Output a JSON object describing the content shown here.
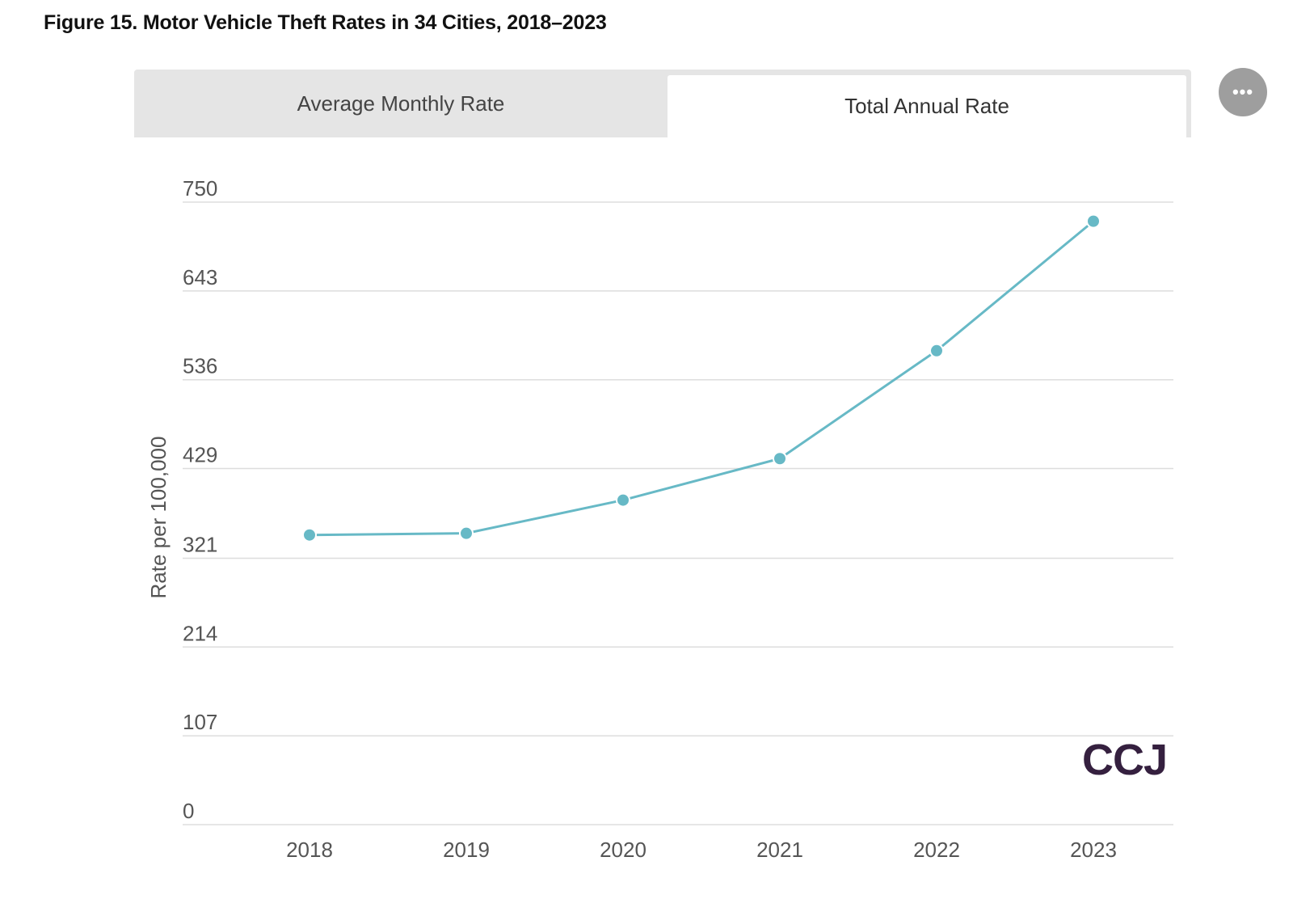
{
  "figure": {
    "title": "Figure 15. Motor Vehicle Theft Rates in 34 Cities, 2018–2023"
  },
  "tabs": [
    {
      "label": "Average Monthly Rate",
      "selected": false
    },
    {
      "label": "Total Annual Rate",
      "selected": true
    }
  ],
  "more_button": {
    "label": "•••",
    "icon": "more-options-icon"
  },
  "logo": {
    "text": "CCJ"
  },
  "colors": {
    "series": "#67b9c6",
    "logo": "#35203f",
    "tab_inactive": "#e5e5e5",
    "tab_active": "#ffffff"
  },
  "chart_data": {
    "type": "line",
    "title": "",
    "xlabel": "",
    "ylabel": "Rate per 100,000",
    "x": [
      "2018",
      "2019",
      "2020",
      "2021",
      "2022",
      "2023"
    ],
    "series": [
      {
        "values": [
          349,
          351,
          391,
          441,
          571,
          727
        ]
      }
    ],
    "y_ticks": [
      "0",
      "107",
      "214",
      "321",
      "429",
      "536",
      "643",
      "750"
    ],
    "ylim": [
      0,
      750
    ],
    "grid": true,
    "legend": "none"
  }
}
